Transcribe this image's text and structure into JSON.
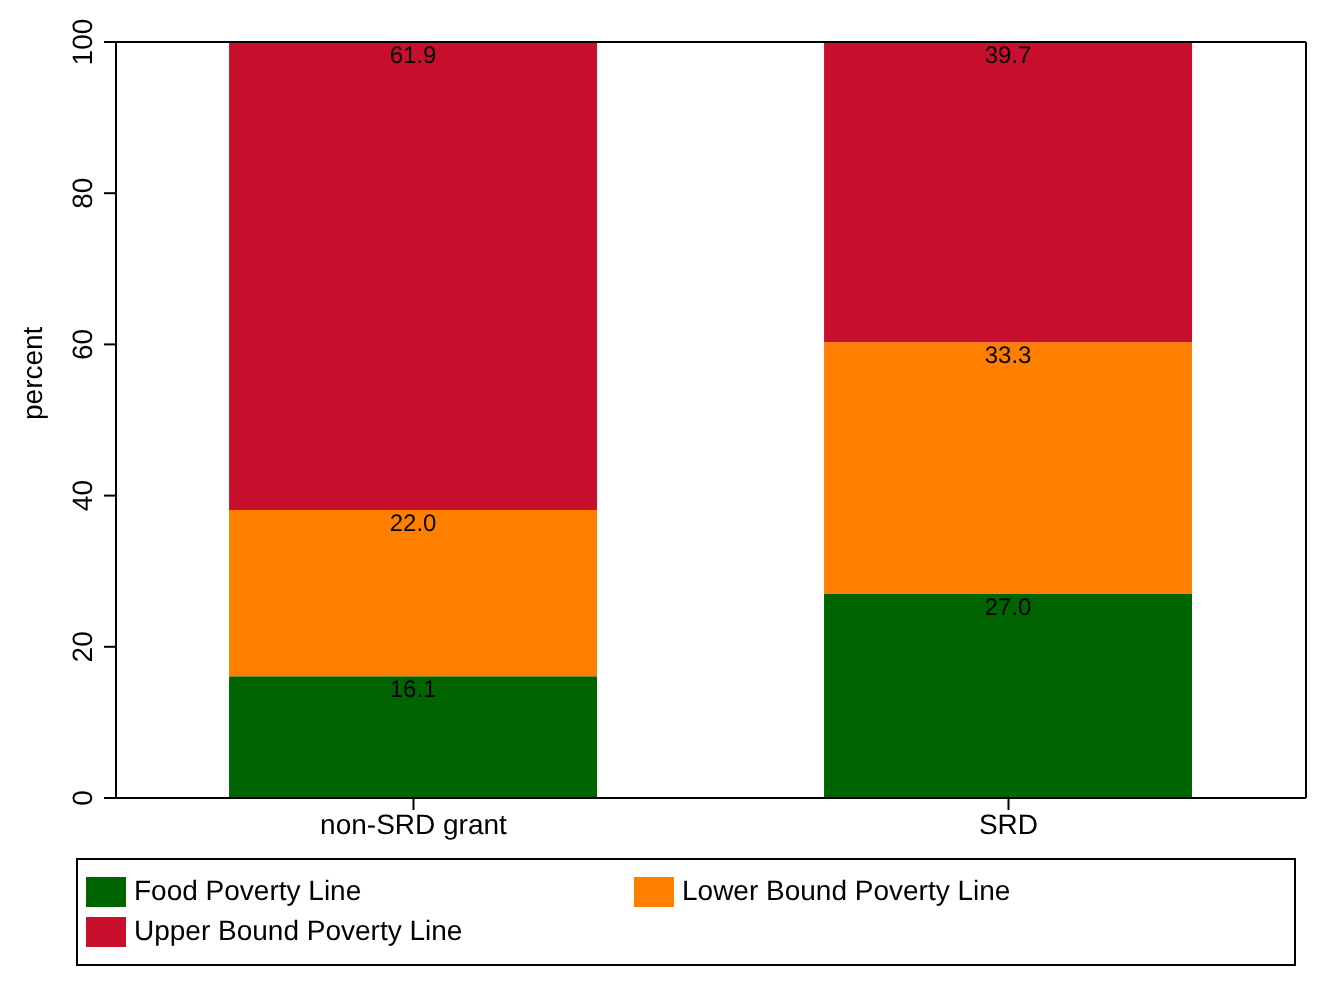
{
  "chart_data": {
    "type": "bar",
    "stacked": true,
    "ylabel": "percent",
    "categories": [
      "non-SRD grant",
      "SRD"
    ],
    "series": [
      {
        "name": "Food Poverty Line",
        "color": "#006400",
        "values": [
          16.1,
          27.0
        ],
        "value_labels": [
          "16.1",
          "27.0"
        ]
      },
      {
        "name": "Lower Bound Poverty Line",
        "color": "#ff8000",
        "values": [
          22.0,
          33.3
        ],
        "value_labels": [
          "22.0",
          "33.3"
        ]
      },
      {
        "name": "Upper Bound Poverty Line",
        "color": "#c8102e",
        "values": [
          61.9,
          39.7
        ],
        "value_labels": [
          "61.9",
          "39.7"
        ]
      }
    ],
    "ylim": [
      0,
      100
    ],
    "yticks": [
      0,
      20,
      40,
      60,
      80,
      100
    ],
    "grid": false,
    "legend": "bottom",
    "data_labels": true
  }
}
